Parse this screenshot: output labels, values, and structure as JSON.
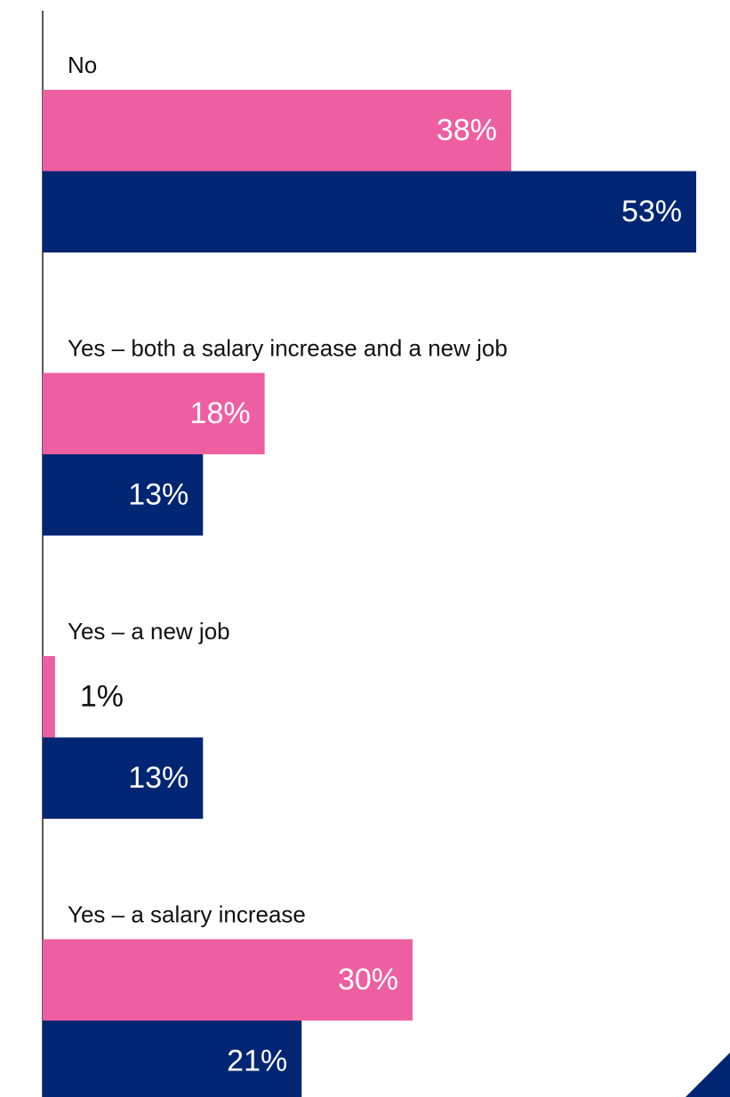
{
  "chart_data": {
    "type": "bar",
    "orientation": "horizontal",
    "categories": [
      "No",
      "Yes – both a salary increase and a new job",
      "Yes – a new job",
      "Yes – a salary increase"
    ],
    "series": [
      {
        "color": "#ee5fa1",
        "values": [
          38,
          18,
          1,
          30
        ],
        "value_labels": [
          "38%",
          "18%",
          "1%",
          "30%"
        ]
      },
      {
        "color": "#002673",
        "values": [
          53,
          13,
          13,
          21
        ],
        "value_labels": [
          "53%",
          "13%",
          "13%",
          "21%"
        ]
      }
    ],
    "xlim": [
      0,
      55
    ]
  }
}
